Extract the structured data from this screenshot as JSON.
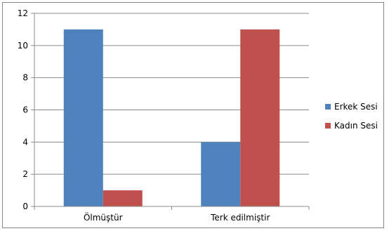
{
  "chart_data": {
    "type": "bar",
    "categories": [
      "Ölmüştür",
      "Terk edilmiştir"
    ],
    "series": [
      {
        "name": "Erkek Sesi",
        "values": [
          11,
          4
        ],
        "color": "#4F81BD"
      },
      {
        "name": "Kadın Sesi",
        "values": [
          1,
          11
        ],
        "color": "#C0504D"
      }
    ],
    "ylim": [
      0,
      12
    ],
    "yticks": [
      0,
      2,
      4,
      6,
      8,
      10,
      12
    ],
    "grid": true,
    "legend_position": "right",
    "title": "",
    "xlabel": "",
    "ylabel": ""
  }
}
